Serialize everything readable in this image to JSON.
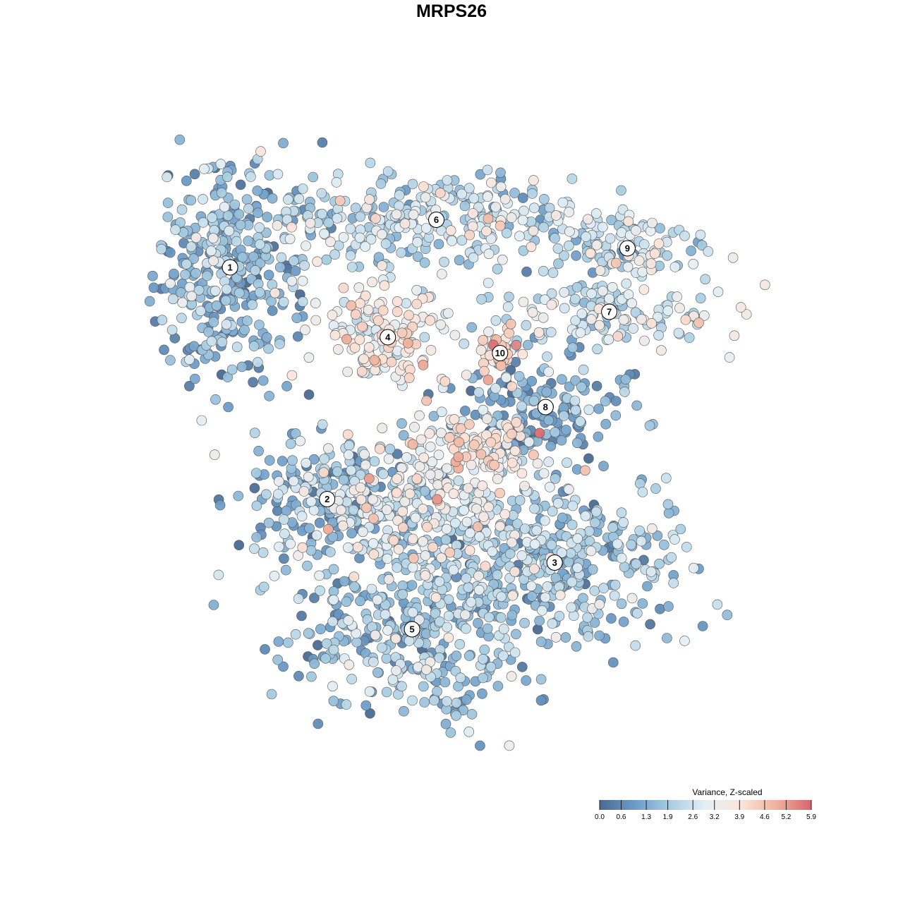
{
  "chart_data": {
    "type": "scatter",
    "title": "MRPS26",
    "legend": {
      "title": "Variance, Z-scaled",
      "placement": "bottom-right",
      "ticks": [
        0.0,
        0.6,
        1.3,
        1.9,
        2.6,
        3.2,
        3.9,
        4.6,
        5.2,
        5.9
      ],
      "tick_labels": [
        "0.0",
        "0.6",
        "1.3",
        "1.9",
        "2.6",
        "3.2",
        "3.9",
        "4.6",
        "5.2",
        "5.9"
      ],
      "range": [
        0.0,
        5.9
      ],
      "colors": [
        "#4a6a91",
        "#6b9cc9",
        "#a7cde2",
        "#e4eff5",
        "#fbe5da",
        "#f0b29c",
        "#d9646e"
      ]
    },
    "axes": {
      "visible": false,
      "grid": false
    },
    "clusters": [
      {
        "label": "1",
        "x": -0.73,
        "y": 0.58,
        "mean_value": 1.5,
        "spread": [
          0.13,
          0.17
        ],
        "n": 360
      },
      {
        "label": "6",
        "x": -0.05,
        "y": 0.73,
        "mean_value": 2.4,
        "spread": [
          0.3,
          0.07
        ],
        "n": 300
      },
      {
        "label": "9",
        "x": 0.58,
        "y": 0.64,
        "mean_value": 2.3,
        "spread": [
          0.14,
          0.05
        ],
        "n": 90
      },
      {
        "label": "7",
        "x": 0.52,
        "y": 0.44,
        "mean_value": 2.5,
        "spread": [
          0.2,
          0.07
        ],
        "n": 150
      },
      {
        "label": "4",
        "x": -0.21,
        "y": 0.36,
        "mean_value": 3.3,
        "spread": [
          0.1,
          0.09
        ],
        "n": 150
      },
      {
        "label": "10",
        "x": 0.16,
        "y": 0.31,
        "mean_value": 3.9,
        "spread": [
          0.03,
          0.05
        ],
        "n": 45
      },
      {
        "label": "8",
        "x": 0.31,
        "y": 0.14,
        "mean_value": 1.2,
        "spread": [
          0.14,
          0.08
        ],
        "n": 160
      },
      {
        "label": "2",
        "x": -0.41,
        "y": -0.15,
        "mean_value": 1.3,
        "spread": [
          0.14,
          0.1
        ],
        "n": 170
      },
      {
        "label": "3",
        "x": 0.34,
        "y": -0.35,
        "mean_value": 1.8,
        "spread": [
          0.2,
          0.13
        ],
        "n": 360
      },
      {
        "label": "5",
        "x": -0.13,
        "y": -0.56,
        "mean_value": 1.7,
        "spread": [
          0.19,
          0.14
        ],
        "n": 360
      },
      {
        "label": "",
        "x": -0.12,
        "y": -0.18,
        "mean_value": 2.9,
        "spread": [
          0.2,
          0.11
        ],
        "n": 330
      },
      {
        "label": "",
        "x": 0.1,
        "y": 0.0,
        "mean_value": 3.6,
        "spread": [
          0.11,
          0.06
        ],
        "n": 90
      }
    ],
    "xlim": [
      -1.15,
      1.15
    ],
    "ylim": [
      -1.0,
      1.0
    ],
    "seed": 7
  }
}
